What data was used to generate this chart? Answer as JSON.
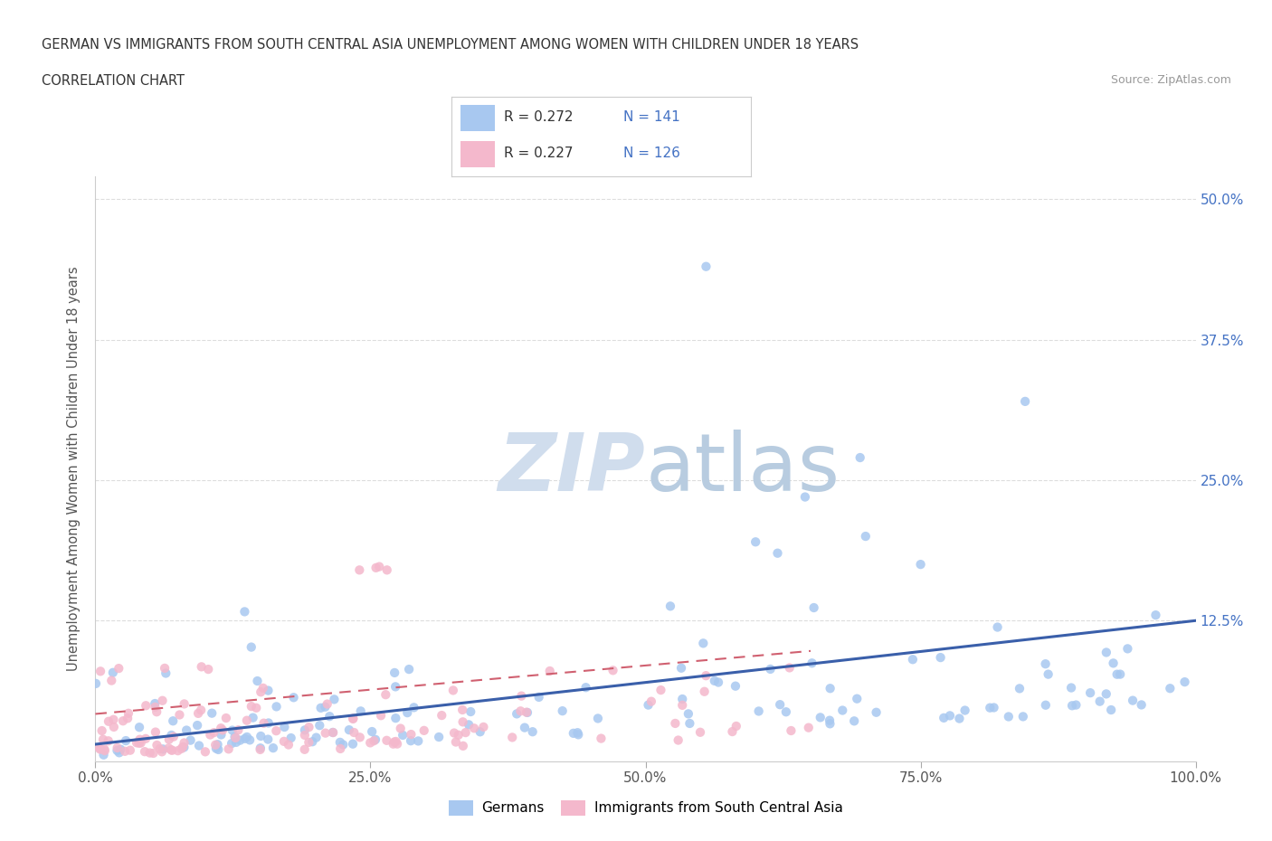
{
  "title_line1": "GERMAN VS IMMIGRANTS FROM SOUTH CENTRAL ASIA UNEMPLOYMENT AMONG WOMEN WITH CHILDREN UNDER 18 YEARS",
  "title_line2": "CORRELATION CHART",
  "source_text": "Source: ZipAtlas.com",
  "ylabel": "Unemployment Among Women with Children Under 18 years",
  "R_german": 0.272,
  "N_german": 141,
  "R_immigrant": 0.227,
  "N_immigrant": 126,
  "german_color": "#a8c8f0",
  "immigrant_color": "#f4b8cc",
  "trend_german_color": "#3a5faa",
  "trend_immigrant_color": "#d06070",
  "background_color": "#ffffff",
  "watermark_color": "#d0dded",
  "xlim": [
    0.0,
    1.0
  ],
  "ylim": [
    0.0,
    0.52
  ],
  "yticks": [
    0.0,
    0.125,
    0.25,
    0.375,
    0.5
  ],
  "ytick_labels": [
    "",
    "12.5%",
    "25.0%",
    "37.5%",
    "50.0%"
  ],
  "xtick_labels": [
    "0.0%",
    "25.0%",
    "50.0%",
    "75.0%",
    "100.0%"
  ],
  "xticks": [
    0.0,
    0.25,
    0.5,
    0.75,
    1.0
  ],
  "trend_german_start": 0.015,
  "trend_german_end": 0.125,
  "trend_immigrant_start": 0.042,
  "trend_immigrant_end": 0.098
}
